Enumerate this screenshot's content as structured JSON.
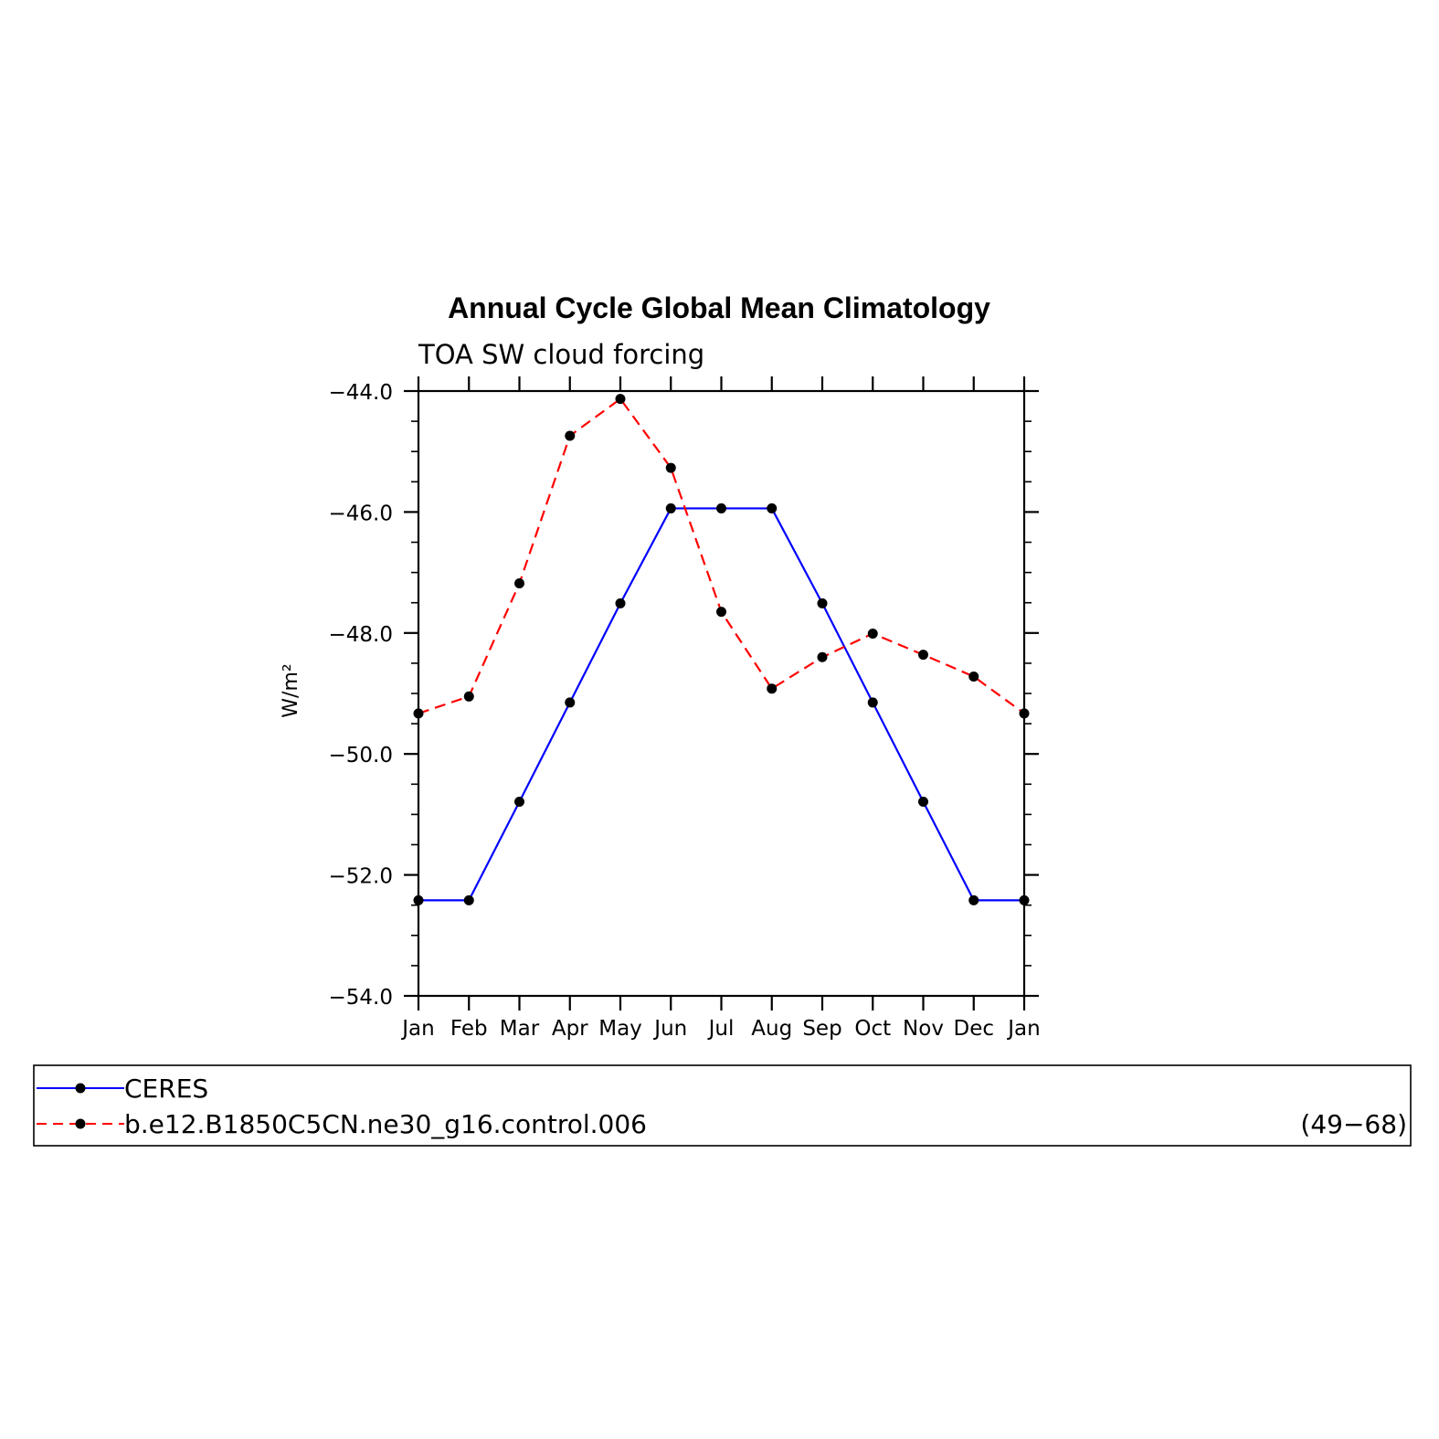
{
  "chart_data": {
    "type": "line",
    "title": "Annual Cycle Global Mean Climatology",
    "subtitle": "TOA SW cloud forcing",
    "ylabel": "W/m²",
    "xlabel": "",
    "categories": [
      "Jan",
      "Feb",
      "Mar",
      "Apr",
      "May",
      "Jun",
      "Jul",
      "Aug",
      "Sep",
      "Oct",
      "Nov",
      "Dec",
      "Jan"
    ],
    "ylim": [
      -54.0,
      -44.0
    ],
    "yticks": [
      -44.0,
      -46.0,
      -48.0,
      -50.0,
      -52.0,
      -54.0
    ],
    "ytick_labels": [
      "−44.0",
      "−46.0",
      "−48.0",
      "−50.0",
      "−52.0",
      "−54.0"
    ],
    "grid": false,
    "series": [
      {
        "name": "CERES",
        "color": "#0000ff",
        "dash": "solid",
        "values": [
          -52.42,
          -52.42,
          -50.79,
          -49.15,
          -47.51,
          -45.94,
          -45.94,
          -45.94,
          -47.51,
          -49.15,
          -50.79,
          -52.42,
          -52.42
        ]
      },
      {
        "name": "b.e12.B1850C5CN.ne30_g16.control.006",
        "color": "#ff0000",
        "dash": "dashed",
        "values": [
          -49.33,
          -49.05,
          -47.18,
          -44.74,
          -44.13,
          -45.27,
          -47.65,
          -48.92,
          -48.4,
          -48.01,
          -48.36,
          -48.72,
          -49.33
        ]
      }
    ],
    "legend": {
      "position": "bottom",
      "note": "(49−68)"
    }
  }
}
